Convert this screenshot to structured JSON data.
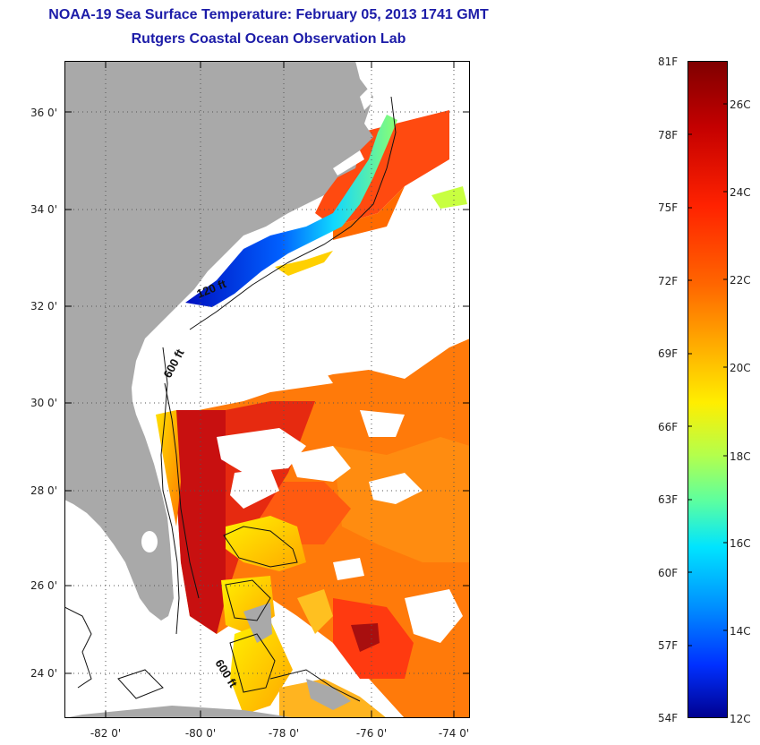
{
  "header": {
    "title": "NOAA-19 Sea Surface Temperature:  February 05, 2013 1741 GMT",
    "subtitle": "Rutgers Coastal Ocean Observation Lab"
  },
  "map": {
    "lat_labels": [
      "36 0'",
      "34 0'",
      "32 0'",
      "30 0'",
      "28 0'",
      "26 0'",
      "24 0'"
    ],
    "lon_labels": [
      "-82 0'",
      "-80 0'",
      "-78 0'",
      "-76 0'",
      "-74 0'"
    ],
    "contours": [
      "120 ft",
      "600 ft",
      "600 ft"
    ],
    "land_color": "#a9a9a9",
    "cloud_color": "#ffffff"
  },
  "colorbar": {
    "fahrenheit": [
      "81F",
      "78F",
      "75F",
      "72F",
      "69F",
      "66F",
      "63F",
      "60F",
      "57F",
      "54F"
    ],
    "celsius": [
      "26C",
      "24C",
      "22C",
      "20C",
      "18C",
      "16C",
      "14C",
      "12C"
    ],
    "colors": [
      "#7f0000",
      "#c40000",
      "#ff2200",
      "#ff6600",
      "#ffaa00",
      "#ffee00",
      "#b4ff4c",
      "#5cffa0",
      "#00e4ff",
      "#0090ff",
      "#0030ff",
      "#00008f"
    ]
  }
}
